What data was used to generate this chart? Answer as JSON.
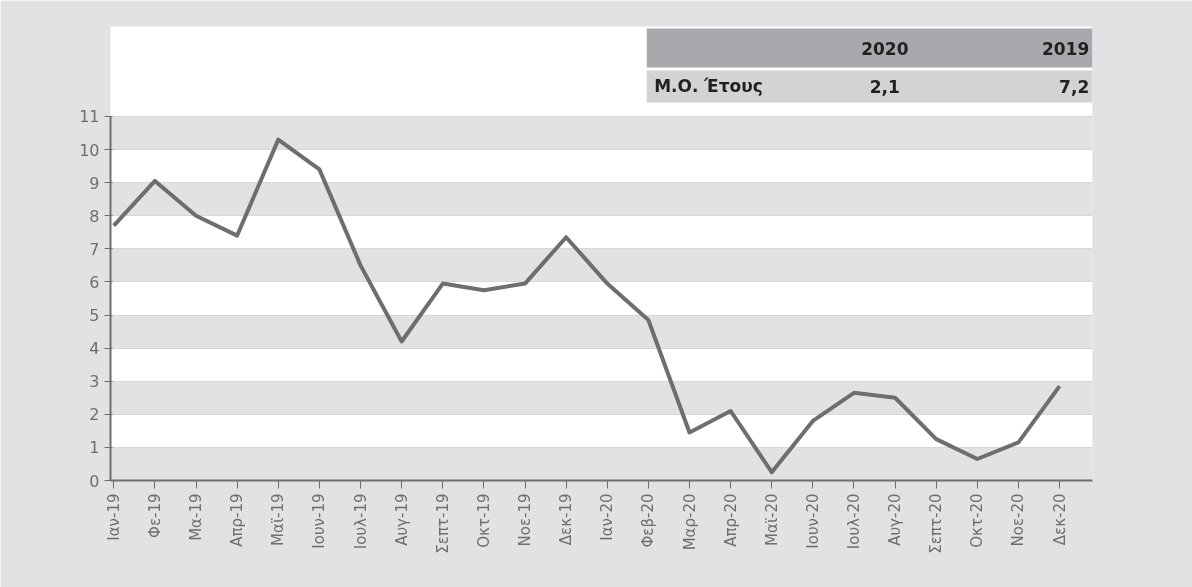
{
  "chart_data": {
    "type": "line",
    "categories": [
      "Ιαν-19",
      "Φε-19",
      "Μα-19",
      "Απρ-19",
      "Μαϊ-19",
      "Ιουν-19",
      "Ιουλ-19",
      "Αυγ-19",
      "Σεπτ-19",
      "Οκτ-19",
      "Νοε-19",
      "Δεκ-19",
      "Ιαν-20",
      "Φεβ-20",
      "Μαρ-20",
      "Απρ-20",
      "Μαϊ-20",
      "Ιουν-20",
      "Ιουλ-20",
      "Αυγ-20",
      "Σεπτ-20",
      "Οκτ-20",
      "Νοε-20",
      "Δεκ-20"
    ],
    "series": [
      {
        "color": "#6d6e70",
        "values": [
          7.7,
          9.05,
          8.0,
          7.4,
          10.3,
          9.4,
          6.5,
          4.2,
          5.95,
          5.75,
          5.95,
          7.35,
          5.95,
          4.85,
          1.45,
          2.1,
          0.25,
          1.8,
          2.65,
          2.5,
          1.25,
          0.65,
          1.15,
          2.85
        ]
      }
    ],
    "ylim": [
      0,
      11
    ],
    "yticks": [
      0,
      1,
      2,
      3,
      4,
      5,
      6,
      7,
      8,
      9,
      10,
      11
    ],
    "grid": "y",
    "marker": "none",
    "line_style": "solid",
    "annotations": [
      "2020",
      "2019",
      "Μ.Ο. Έτους",
      "2,1",
      "7,2"
    ]
  }
}
